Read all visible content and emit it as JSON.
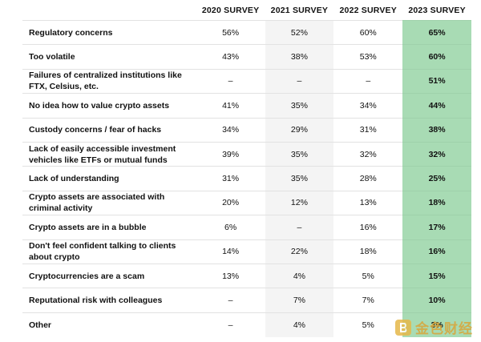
{
  "headers": [
    "",
    "2020 SURVEY",
    "2021 SURVEY",
    "2022 SURVEY",
    "2023 SURVEY"
  ],
  "rows": [
    {
      "label": "Regulatory concerns",
      "values": [
        "56%",
        "52%",
        "60%",
        "65%"
      ]
    },
    {
      "label": "Too volatile",
      "values": [
        "43%",
        "38%",
        "53%",
        "60%"
      ]
    },
    {
      "label": "Failures of centralized institutions like FTX, Celsius, etc.",
      "values": [
        "–",
        "–",
        "–",
        "51%"
      ]
    },
    {
      "label": "No idea how to value crypto assets",
      "values": [
        "41%",
        "35%",
        "34%",
        "44%"
      ]
    },
    {
      "label": "Custody concerns / fear of hacks",
      "values": [
        "34%",
        "29%",
        "31%",
        "38%"
      ]
    },
    {
      "label": "Lack of easily accessible investment vehicles like ETFs or mutual funds",
      "values": [
        "39%",
        "35%",
        "32%",
        "32%"
      ]
    },
    {
      "label": "Lack of understanding",
      "values": [
        "31%",
        "35%",
        "28%",
        "25%"
      ]
    },
    {
      "label": "Crypto assets are associated with criminal activity",
      "values": [
        "20%",
        "12%",
        "13%",
        "18%"
      ]
    },
    {
      "label": "Crypto assets are in a bubble",
      "values": [
        "6%",
        "–",
        "16%",
        "17%"
      ]
    },
    {
      "label": "Don't feel confident talking to clients about crypto",
      "values": [
        "14%",
        "22%",
        "18%",
        "16%"
      ]
    },
    {
      "label": "Cryptocurrencies are a scam",
      "values": [
        "13%",
        "4%",
        "5%",
        "15%"
      ]
    },
    {
      "label": "Reputational risk with colleagues",
      "values": [
        "–",
        "7%",
        "7%",
        "10%"
      ]
    },
    {
      "label": "Other",
      "values": [
        "–",
        "4%",
        "5%",
        "3%"
      ]
    }
  ],
  "colors": {
    "highlight_column": "#a8dbb4",
    "alt_column": "#f4f4f4",
    "watermark": "#d9a53a"
  },
  "watermark": {
    "text": "金色财经",
    "icon": "b-logo-icon"
  }
}
